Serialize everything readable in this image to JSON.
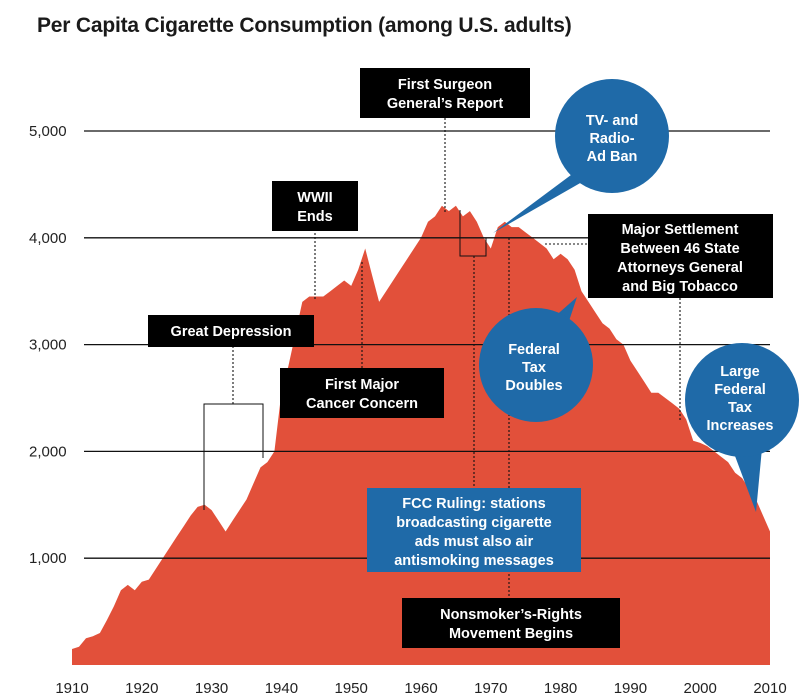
{
  "chart_data": {
    "type": "area",
    "title": "Per Capita Cigarette Consumption (among U.S. adults)",
    "xlabel": "",
    "ylabel": "",
    "xlim": [
      1910,
      2010
    ],
    "ylim": [
      0,
      5000
    ],
    "x_ticks": [
      "1910",
      "1920",
      "1930",
      "1940",
      "1950",
      "1960",
      "1970",
      "1980",
      "1990",
      "2000",
      "2010"
    ],
    "y_ticks": [
      "1,000",
      "2,000",
      "3,000",
      "4,000",
      "5,000"
    ],
    "grid": true,
    "color": "#e2503a",
    "x": [
      1910,
      1911,
      1912,
      1913,
      1914,
      1915,
      1916,
      1917,
      1918,
      1919,
      1920,
      1921,
      1922,
      1923,
      1924,
      1925,
      1926,
      1927,
      1928,
      1929,
      1930,
      1931,
      1932,
      1933,
      1934,
      1935,
      1936,
      1937,
      1938,
      1939,
      1940,
      1941,
      1942,
      1943,
      1944,
      1945,
      1946,
      1947,
      1948,
      1949,
      1950,
      1951,
      1952,
      1953,
      1954,
      1955,
      1956,
      1957,
      1958,
      1959,
      1960,
      1961,
      1962,
      1963,
      1964,
      1965,
      1966,
      1967,
      1968,
      1969,
      1970,
      1971,
      1972,
      1973,
      1974,
      1975,
      1976,
      1977,
      1978,
      1979,
      1980,
      1981,
      1982,
      1983,
      1984,
      1985,
      1986,
      1987,
      1988,
      1989,
      1990,
      1991,
      1992,
      1993,
      1994,
      1995,
      1996,
      1997,
      1998,
      1999,
      2000,
      2001,
      2002,
      2003,
      2004,
      2005,
      2006,
      2007,
      2008,
      2009,
      2010
    ],
    "values": [
      150,
      170,
      250,
      270,
      300,
      420,
      550,
      700,
      750,
      700,
      780,
      800,
      900,
      1000,
      1100,
      1200,
      1300,
      1400,
      1480,
      1500,
      1450,
      1350,
      1250,
      1350,
      1450,
      1550,
      1700,
      1850,
      1900,
      2000,
      2550,
      2800,
      3100,
      3400,
      3450,
      3450,
      3450,
      3500,
      3550,
      3600,
      3550,
      3700,
      3900,
      3650,
      3400,
      3500,
      3600,
      3700,
      3800,
      3900,
      4000,
      4150,
      4200,
      4300,
      4250,
      4300,
      4200,
      4250,
      4150,
      4000,
      3900,
      4100,
      4150,
      4100,
      4100,
      4050,
      4000,
      3950,
      3900,
      3800,
      3850,
      3800,
      3700,
      3500,
      3400,
      3300,
      3200,
      3150,
      3050,
      3000,
      2850,
      2750,
      2650,
      2550,
      2550,
      2500,
      2450,
      2400,
      2300,
      2100,
      2080,
      2050,
      2000,
      1950,
      1900,
      1800,
      1750,
      1650,
      1550,
      1400,
      1250
    ]
  },
  "annotations": {
    "great_depression": "Great Depression",
    "wwii_1": "WWII",
    "wwii_2": "Ends",
    "cancer_1": "First Major",
    "cancer_2": "Cancer Concern",
    "surgeon_1": "First Surgeon",
    "surgeon_2": "General’s Report",
    "tv_1": "TV- and",
    "tv_2": "Radio-",
    "tv_3": "Ad Ban",
    "settlement_1": "Major Settlement",
    "settlement_2": "Between 46 State",
    "settlement_3": "Attorneys General",
    "settlement_4": "and Big Tobacco",
    "tax_1": "Federal",
    "tax_2": "Tax",
    "tax_3": "Doubles",
    "fcc_1": "FCC Ruling: stations",
    "fcc_2": "broadcasting cigarette",
    "fcc_3": "ads must also air",
    "fcc_4": "antismoking messages",
    "nonsmoker_1": "Nonsmoker’s-Rights",
    "nonsmoker_2": "Movement Begins",
    "large_1": "Large",
    "large_2": "Federal",
    "large_3": "Tax",
    "large_4": "Increases"
  }
}
